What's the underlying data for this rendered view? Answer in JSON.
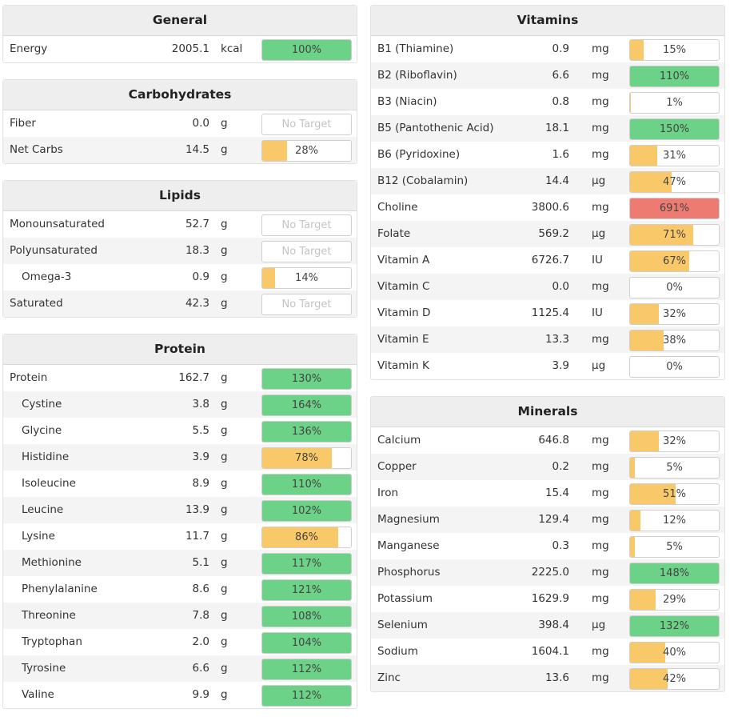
{
  "colors": {
    "green": "#6cd287",
    "yellow": "#f9c969",
    "red": "#ee7b72"
  },
  "panels": [
    {
      "id": "general",
      "column": "left",
      "title": "General",
      "rows": [
        {
          "name": "Energy",
          "amount": "2005.1",
          "unit": "kcal",
          "pct": "100%",
          "value": 100,
          "level": "green"
        }
      ]
    },
    {
      "id": "carbohydrates",
      "column": "left",
      "title": "Carbohydrates",
      "rows": [
        {
          "name": "Fiber",
          "amount": "0.0",
          "unit": "g",
          "pct": "No Target",
          "value": null,
          "level": "none"
        },
        {
          "name": "Net Carbs",
          "amount": "14.5",
          "unit": "g",
          "pct": "28%",
          "value": 28,
          "level": "yellow"
        }
      ]
    },
    {
      "id": "lipids",
      "column": "left",
      "title": "Lipids",
      "rows": [
        {
          "name": "Monounsaturated",
          "amount": "52.7",
          "unit": "g",
          "pct": "No Target",
          "value": null,
          "level": "none"
        },
        {
          "name": "Polyunsaturated",
          "amount": "18.3",
          "unit": "g",
          "pct": "No Target",
          "value": null,
          "level": "none"
        },
        {
          "name": "Omega-3",
          "amount": "0.9",
          "unit": "g",
          "pct": "14%",
          "value": 14,
          "level": "yellow",
          "indent": true
        },
        {
          "name": "Saturated",
          "amount": "42.3",
          "unit": "g",
          "pct": "No Target",
          "value": null,
          "level": "none"
        }
      ]
    },
    {
      "id": "protein",
      "column": "left",
      "title": "Protein",
      "rows": [
        {
          "name": "Protein",
          "amount": "162.7",
          "unit": "g",
          "pct": "130%",
          "value": 130,
          "level": "green"
        },
        {
          "name": "Cystine",
          "amount": "3.8",
          "unit": "g",
          "pct": "164%",
          "value": 164,
          "level": "green",
          "indent": true
        },
        {
          "name": "Glycine",
          "amount": "5.5",
          "unit": "g",
          "pct": "136%",
          "value": 136,
          "level": "green",
          "indent": true
        },
        {
          "name": "Histidine",
          "amount": "3.9",
          "unit": "g",
          "pct": "78%",
          "value": 78,
          "level": "yellow",
          "indent": true
        },
        {
          "name": "Isoleucine",
          "amount": "8.9",
          "unit": "g",
          "pct": "110%",
          "value": 110,
          "level": "green",
          "indent": true
        },
        {
          "name": "Leucine",
          "amount": "13.9",
          "unit": "g",
          "pct": "102%",
          "value": 102,
          "level": "green",
          "indent": true
        },
        {
          "name": "Lysine",
          "amount": "11.7",
          "unit": "g",
          "pct": "86%",
          "value": 86,
          "level": "yellow",
          "indent": true
        },
        {
          "name": "Methionine",
          "amount": "5.1",
          "unit": "g",
          "pct": "117%",
          "value": 117,
          "level": "green",
          "indent": true
        },
        {
          "name": "Phenylalanine",
          "amount": "8.6",
          "unit": "g",
          "pct": "121%",
          "value": 121,
          "level": "green",
          "indent": true
        },
        {
          "name": "Threonine",
          "amount": "7.8",
          "unit": "g",
          "pct": "108%",
          "value": 108,
          "level": "green",
          "indent": true
        },
        {
          "name": "Tryptophan",
          "amount": "2.0",
          "unit": "g",
          "pct": "104%",
          "value": 104,
          "level": "green",
          "indent": true
        },
        {
          "name": "Tyrosine",
          "amount": "6.6",
          "unit": "g",
          "pct": "112%",
          "value": 112,
          "level": "green",
          "indent": true
        },
        {
          "name": "Valine",
          "amount": "9.9",
          "unit": "g",
          "pct": "112%",
          "value": 112,
          "level": "green",
          "indent": true
        }
      ]
    },
    {
      "id": "vitamins",
      "column": "right",
      "title": "Vitamins",
      "rows": [
        {
          "name": "B1 (Thiamine)",
          "amount": "0.9",
          "unit": "mg",
          "pct": "15%",
          "value": 15,
          "level": "yellow"
        },
        {
          "name": "B2 (Riboflavin)",
          "amount": "6.6",
          "unit": "mg",
          "pct": "110%",
          "value": 110,
          "level": "green"
        },
        {
          "name": "B3 (Niacin)",
          "amount": "0.8",
          "unit": "mg",
          "pct": "1%",
          "value": 1,
          "level": "yellow"
        },
        {
          "name": "B5 (Pantothenic Acid)",
          "amount": "18.1",
          "unit": "mg",
          "pct": "150%",
          "value": 150,
          "level": "green"
        },
        {
          "name": "B6 (Pyridoxine)",
          "amount": "1.6",
          "unit": "mg",
          "pct": "31%",
          "value": 31,
          "level": "yellow"
        },
        {
          "name": "B12 (Cobalamin)",
          "amount": "14.4",
          "unit": "µg",
          "pct": "47%",
          "value": 47,
          "level": "yellow"
        },
        {
          "name": "Choline",
          "amount": "3800.6",
          "unit": "mg",
          "pct": "691%",
          "value": 691,
          "level": "red"
        },
        {
          "name": "Folate",
          "amount": "569.2",
          "unit": "µg",
          "pct": "71%",
          "value": 71,
          "level": "yellow"
        },
        {
          "name": "Vitamin A",
          "amount": "6726.7",
          "unit": "IU",
          "pct": "67%",
          "value": 67,
          "level": "yellow"
        },
        {
          "name": "Vitamin C",
          "amount": "0.0",
          "unit": "mg",
          "pct": "0%",
          "value": 0,
          "level": "yellow"
        },
        {
          "name": "Vitamin D",
          "amount": "1125.4",
          "unit": "IU",
          "pct": "32%",
          "value": 32,
          "level": "yellow"
        },
        {
          "name": "Vitamin E",
          "amount": "13.3",
          "unit": "mg",
          "pct": "38%",
          "value": 38,
          "level": "yellow"
        },
        {
          "name": "Vitamin K",
          "amount": "3.9",
          "unit": "µg",
          "pct": "0%",
          "value": 0,
          "level": "yellow"
        }
      ]
    },
    {
      "id": "minerals",
      "column": "right",
      "title": "Minerals",
      "rows": [
        {
          "name": "Calcium",
          "amount": "646.8",
          "unit": "mg",
          "pct": "32%",
          "value": 32,
          "level": "yellow"
        },
        {
          "name": "Copper",
          "amount": "0.2",
          "unit": "mg",
          "pct": "5%",
          "value": 5,
          "level": "yellow"
        },
        {
          "name": "Iron",
          "amount": "15.4",
          "unit": "mg",
          "pct": "51%",
          "value": 51,
          "level": "yellow"
        },
        {
          "name": "Magnesium",
          "amount": "129.4",
          "unit": "mg",
          "pct": "12%",
          "value": 12,
          "level": "yellow"
        },
        {
          "name": "Manganese",
          "amount": "0.3",
          "unit": "mg",
          "pct": "5%",
          "value": 5,
          "level": "yellow"
        },
        {
          "name": "Phosphorus",
          "amount": "2225.0",
          "unit": "mg",
          "pct": "148%",
          "value": 148,
          "level": "green"
        },
        {
          "name": "Potassium",
          "amount": "1629.9",
          "unit": "mg",
          "pct": "29%",
          "value": 29,
          "level": "yellow"
        },
        {
          "name": "Selenium",
          "amount": "398.4",
          "unit": "µg",
          "pct": "132%",
          "value": 132,
          "level": "green"
        },
        {
          "name": "Sodium",
          "amount": "1604.1",
          "unit": "mg",
          "pct": "40%",
          "value": 40,
          "level": "yellow"
        },
        {
          "name": "Zinc",
          "amount": "13.6",
          "unit": "mg",
          "pct": "42%",
          "value": 42,
          "level": "yellow"
        }
      ]
    }
  ]
}
